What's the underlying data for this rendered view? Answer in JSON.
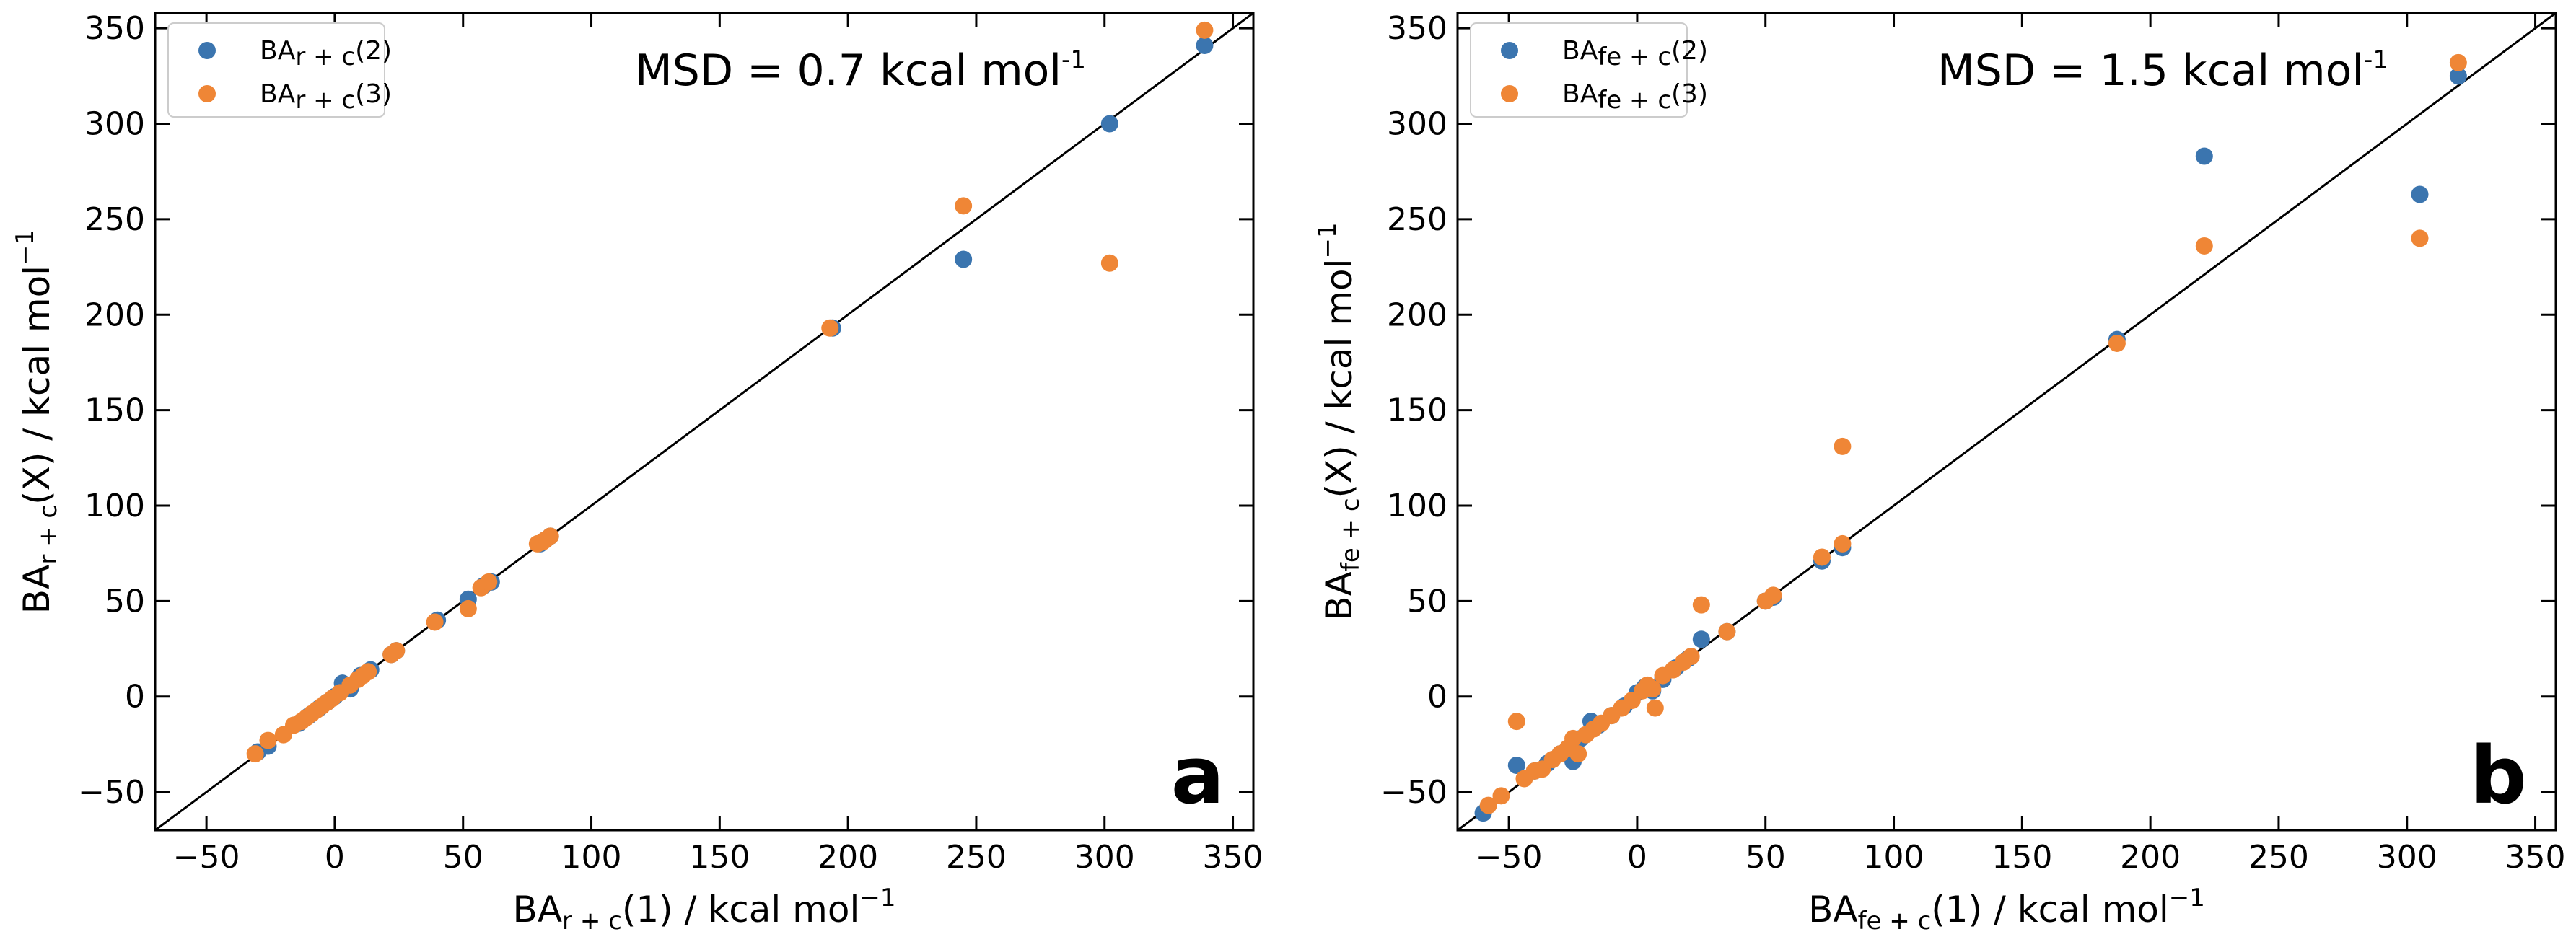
{
  "chart_data": [
    {
      "type": "scatter",
      "panel_label": "a",
      "annotation": {
        "prefix": "MSD = 0.7 kcal mol",
        "sup": "-1"
      },
      "xlabel": {
        "prefix": "BA",
        "sub": "r + c",
        "suffix": "(1) / kcal mol",
        "sup": "−1"
      },
      "ylabel": {
        "prefix": "BA",
        "sub": "r + c",
        "suffix": "(X) / kcal mol",
        "sup": "−1"
      },
      "xlim": [
        -70,
        358
      ],
      "ylim": [
        -70,
        358
      ],
      "xticks": [
        -50,
        0,
        50,
        100,
        150,
        200,
        250,
        300,
        350
      ],
      "yticks": [
        -50,
        0,
        50,
        100,
        150,
        200,
        250,
        300,
        350
      ],
      "xtick_labels": [
        "−50",
        "0",
        "50",
        "100",
        "150",
        "200",
        "250",
        "300",
        "350"
      ],
      "ytick_labels": [
        "−50",
        "0",
        "50",
        "100",
        "150",
        "200",
        "250",
        "300",
        "350"
      ],
      "diagonal": true,
      "legend_position": "upper-left",
      "series": [
        {
          "name": "BA_r+c(2)",
          "legend": {
            "prefix": "BA",
            "sub": "r + c",
            "suffix": "(2)"
          },
          "color": "#3b75af",
          "points": [
            [
              -30,
              -29
            ],
            [
              -26,
              -26
            ],
            [
              -14,
              -14
            ],
            [
              -10,
              -10
            ],
            [
              -6,
              -6
            ],
            [
              -3,
              -3
            ],
            [
              0,
              0
            ],
            [
              3,
              7
            ],
            [
              6,
              4
            ],
            [
              10,
              11
            ],
            [
              14,
              14
            ],
            [
              22,
              22
            ],
            [
              24,
              24
            ],
            [
              40,
              40
            ],
            [
              52,
              51
            ],
            [
              58,
              58
            ],
            [
              61,
              60
            ],
            [
              80,
              80
            ],
            [
              82,
              82
            ],
            [
              84,
              84
            ],
            [
              194,
              193
            ],
            [
              245,
              229
            ],
            [
              302,
              300
            ],
            [
              339,
              341
            ]
          ]
        },
        {
          "name": "BA_r+c(3)",
          "legend": {
            "prefix": "BA",
            "sub": "r + c",
            "suffix": "(3)"
          },
          "color": "#ef8636",
          "points": [
            [
              -31,
              -30
            ],
            [
              -26,
              -23
            ],
            [
              -20,
              -20
            ],
            [
              -16,
              -15
            ],
            [
              -13,
              -13
            ],
            [
              -11,
              -11
            ],
            [
              -9,
              -9
            ],
            [
              -7,
              -7
            ],
            [
              -5,
              -5
            ],
            [
              -3,
              -3
            ],
            [
              -1,
              -1
            ],
            [
              2,
              2
            ],
            [
              6,
              6
            ],
            [
              9,
              9
            ],
            [
              11,
              11
            ],
            [
              13,
              13
            ],
            [
              22,
              22
            ],
            [
              24,
              24
            ],
            [
              39,
              39
            ],
            [
              52,
              46
            ],
            [
              57,
              57
            ],
            [
              60,
              60
            ],
            [
              79,
              80
            ],
            [
              81,
              81
            ],
            [
              82,
              82
            ],
            [
              84,
              84
            ],
            [
              193,
              193
            ],
            [
              245,
              257
            ],
            [
              302,
              227
            ],
            [
              339,
              349
            ]
          ]
        }
      ]
    },
    {
      "type": "scatter",
      "panel_label": "b",
      "annotation": {
        "prefix": "MSD = 1.5 kcal mol",
        "sup": "-1"
      },
      "xlabel": {
        "prefix": "BA",
        "sub": "fe + c",
        "suffix": "(1) / kcal mol",
        "sup": "−1"
      },
      "ylabel": {
        "prefix": "BA",
        "sub": "fe + c",
        "suffix": "(X) / kcal mol",
        "sup": "−1"
      },
      "xlim": [
        -70,
        358
      ],
      "ylim": [
        -70,
        358
      ],
      "xticks": [
        -50,
        0,
        50,
        100,
        150,
        200,
        250,
        300,
        350
      ],
      "yticks": [
        -50,
        0,
        50,
        100,
        150,
        200,
        250,
        300,
        350
      ],
      "xtick_labels": [
        "−50",
        "0",
        "50",
        "100",
        "150",
        "200",
        "250",
        "300",
        "350"
      ],
      "ytick_labels": [
        "−50",
        "0",
        "50",
        "100",
        "150",
        "200",
        "250",
        "300",
        "350"
      ],
      "diagonal": true,
      "legend_position": "upper-left",
      "series": [
        {
          "name": "BA_fe+c(2)",
          "legend": {
            "prefix": "BA",
            "sub": "fe + c",
            "suffix": "(2)"
          },
          "color": "#3b75af",
          "points": [
            [
              -60,
              -61
            ],
            [
              -47,
              -36
            ],
            [
              -40,
              -39
            ],
            [
              -35,
              -35
            ],
            [
              -30,
              -30
            ],
            [
              -25,
              -34
            ],
            [
              -22,
              -22
            ],
            [
              -18,
              -13
            ],
            [
              -15,
              -15
            ],
            [
              -10,
              -10
            ],
            [
              -5,
              -5
            ],
            [
              0,
              2
            ],
            [
              3,
              5
            ],
            [
              6,
              3
            ],
            [
              10,
              9
            ],
            [
              15,
              15
            ],
            [
              20,
              20
            ],
            [
              25,
              30
            ],
            [
              35,
              34
            ],
            [
              50,
              50
            ],
            [
              53,
              52
            ],
            [
              72,
              71
            ],
            [
              80,
              78
            ],
            [
              187,
              187
            ],
            [
              221,
              283
            ],
            [
              305,
              263
            ],
            [
              320,
              325
            ]
          ]
        },
        {
          "name": "BA_fe+c(3)",
          "legend": {
            "prefix": "BA",
            "sub": "fe + c",
            "suffix": "(3)"
          },
          "color": "#ef8636",
          "points": [
            [
              -58,
              -57
            ],
            [
              -53,
              -52
            ],
            [
              -47,
              -13
            ],
            [
              -44,
              -43
            ],
            [
              -40,
              -39
            ],
            [
              -37,
              -38
            ],
            [
              -33,
              -33
            ],
            [
              -30,
              -30
            ],
            [
              -27,
              -27
            ],
            [
              -25,
              -22
            ],
            [
              -23,
              -30
            ],
            [
              -20,
              -20
            ],
            [
              -17,
              -17
            ],
            [
              -14,
              -14
            ],
            [
              -10,
              -10
            ],
            [
              -6,
              -6
            ],
            [
              -2,
              -2
            ],
            [
              2,
              3
            ],
            [
              4,
              6
            ],
            [
              6,
              4
            ],
            [
              7,
              -6
            ],
            [
              10,
              11
            ],
            [
              14,
              14
            ],
            [
              18,
              18
            ],
            [
              21,
              21
            ],
            [
              25,
              48
            ],
            [
              35,
              34
            ],
            [
              50,
              50
            ],
            [
              53,
              53
            ],
            [
              72,
              73
            ],
            [
              80,
              80
            ],
            [
              80,
              131
            ],
            [
              187,
              185
            ],
            [
              221,
              236
            ],
            [
              305,
              240
            ],
            [
              320,
              332
            ]
          ]
        }
      ]
    }
  ]
}
